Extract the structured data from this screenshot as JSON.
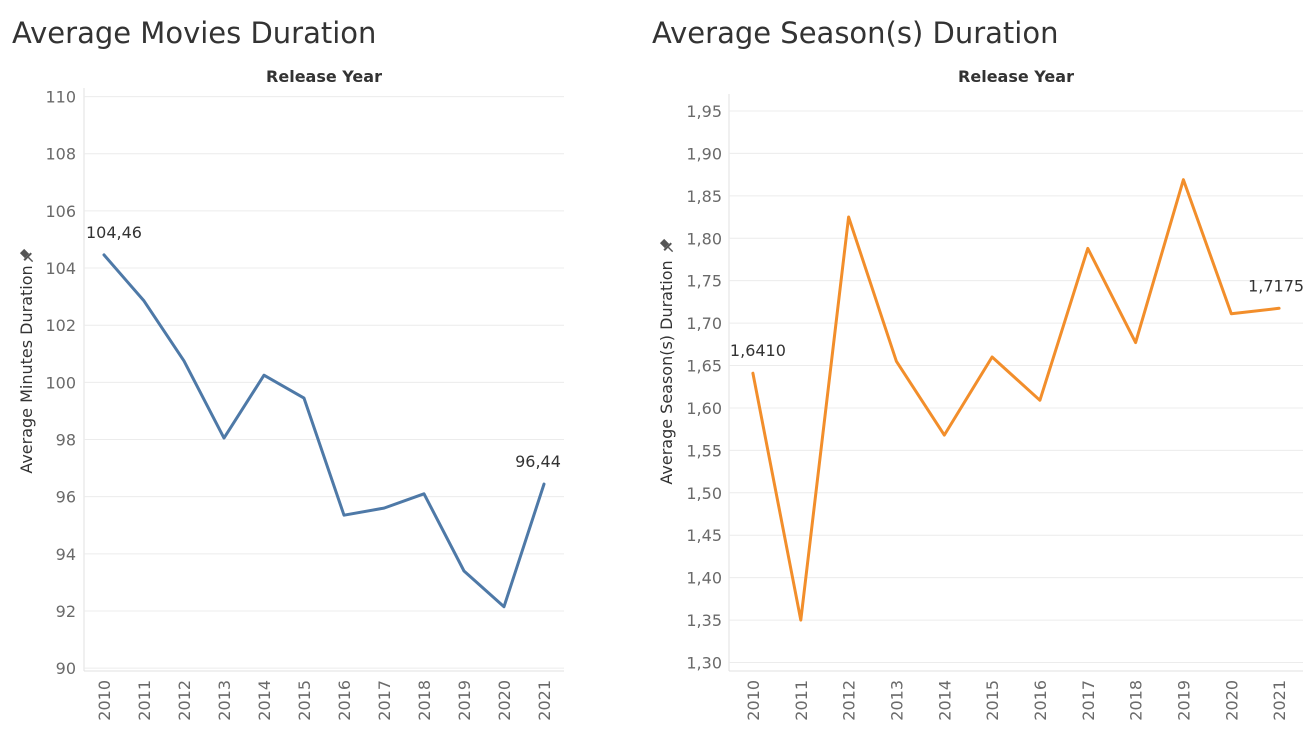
{
  "chart_data": [
    {
      "type": "line",
      "title": "Average Movies Duration",
      "column_header": "Release Year",
      "ylabel": "Average Minutes Duration",
      "x": [
        "2010",
        "2011",
        "2012",
        "2013",
        "2014",
        "2015",
        "2016",
        "2017",
        "2018",
        "2019",
        "2020",
        "2021"
      ],
      "series": [
        {
          "values": [
            104.46,
            102.85,
            100.75,
            98.05,
            100.25,
            99.45,
            95.35,
            95.6,
            96.1,
            93.4,
            92.15,
            96.44
          ]
        }
      ],
      "yticks": [
        90,
        92,
        94,
        96,
        98,
        100,
        102,
        104,
        106,
        108,
        110
      ],
      "ytick_labels": [
        "90",
        "92",
        "94",
        "96",
        "98",
        "100",
        "102",
        "104",
        "106",
        "108",
        "110"
      ],
      "ylim": [
        89.9,
        110.3
      ],
      "data_labels": [
        {
          "index": 0,
          "text": "104,46"
        },
        {
          "index": 11,
          "text": "96,44"
        }
      ],
      "color": "#4e79a7",
      "grid": true,
      "legend": "none"
    },
    {
      "type": "line",
      "title": "Average Season(s) Duration",
      "column_header": "Release Year",
      "ylabel": "Average Season(s) Duration",
      "x": [
        "2010",
        "2011",
        "2012",
        "2013",
        "2014",
        "2015",
        "2016",
        "2017",
        "2018",
        "2019",
        "2020",
        "2021"
      ],
      "series": [
        {
          "values": [
            1.641,
            1.35,
            1.825,
            1.655,
            1.568,
            1.66,
            1.609,
            1.788,
            1.677,
            1.869,
            1.711,
            1.7175
          ]
        }
      ],
      "yticks": [
        1.3,
        1.35,
        1.4,
        1.45,
        1.5,
        1.55,
        1.6,
        1.65,
        1.7,
        1.75,
        1.8,
        1.85,
        1.9,
        1.95
      ],
      "ytick_labels": [
        "1,30",
        "1,35",
        "1,40",
        "1,45",
        "1,50",
        "1,55",
        "1,60",
        "1,65",
        "1,70",
        "1,75",
        "1,80",
        "1,85",
        "1,90",
        "1,95"
      ],
      "ylim": [
        1.29,
        1.97
      ],
      "data_labels": [
        {
          "index": 0,
          "text": "1,6410"
        },
        {
          "index": 11,
          "text": "1,7175"
        }
      ],
      "color": "#f28e2b",
      "grid": true,
      "legend": "none"
    }
  ]
}
